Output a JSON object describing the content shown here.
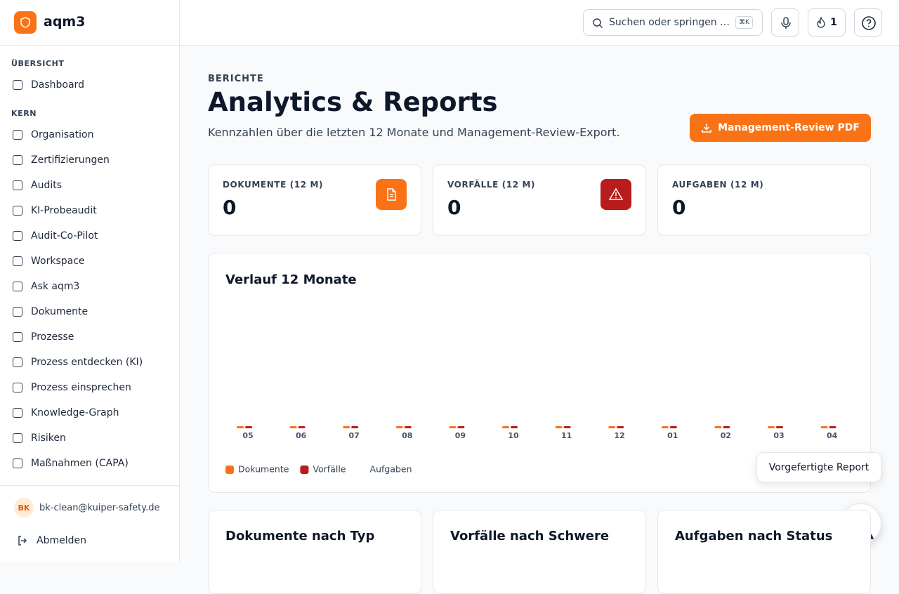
{
  "sidebar": {
    "brand": "aqm3",
    "sections": [
      {
        "title": "ÜBERSICHT",
        "items": [
          "Dashboard"
        ]
      },
      {
        "title": "KERN",
        "items": [
          "Organisation",
          "Zertifizierungen",
          "Audits",
          "KI-Probeaudit",
          "Audit-Co-Pilot",
          "Workspace",
          "Ask aqm3",
          "Dokumente",
          "Prozesse",
          "Prozess entdecken (KI)",
          "Prozess einsprechen",
          "Knowledge-Graph",
          "Risiken",
          "Maßnahmen (CAPA)"
        ]
      }
    ],
    "user": {
      "initials": "BK",
      "email": "bk-clean@kuiper-safety.de"
    },
    "logout": "Abmelden"
  },
  "topbar": {
    "search": "Suchen oder springen …",
    "shortcut": "⌘K",
    "streak": 1
  },
  "header": {
    "eyebrow": "BERICHTE",
    "title": "Analytics & Reports",
    "subtitle": "Kennzahlen über die letzten 12 Monate und Management-Review-Export.",
    "button": "Management-Review PDF"
  },
  "stats": [
    {
      "label": "DOKUMENTE (12 M)",
      "value": 0
    },
    {
      "label": "VORFÄLLE (12 M)",
      "value": 0
    },
    {
      "label": "AUFGABEN (12 M)",
      "value": 0
    }
  ],
  "chart_data": {
    "type": "bar",
    "title": "Verlauf 12 Monate",
    "categories": [
      "05",
      "06",
      "07",
      "08",
      "09",
      "10",
      "11",
      "12",
      "01",
      "02",
      "03",
      "04"
    ],
    "series": [
      {
        "name": "Dokumente",
        "color": "#f97316",
        "values": [
          0,
          0,
          0,
          0,
          0,
          0,
          0,
          0,
          0,
          0,
          0,
          0
        ]
      },
      {
        "name": "Vorfälle",
        "color": "#b91c1c",
        "values": [
          0,
          0,
          0,
          0,
          0,
          0,
          0,
          0,
          0,
          0,
          0,
          0
        ]
      },
      {
        "name": "Aufgaben",
        "color": "#ffffff",
        "values": [
          0,
          0,
          0,
          0,
          0,
          0,
          0,
          0,
          0,
          0,
          0,
          0
        ]
      }
    ]
  },
  "panels": [
    "Dokumente nach Typ",
    "Vorfälle nach Schwere",
    "Aufgaben nach Status"
  ],
  "assistant": {
    "tooltip": "Vorgefertigte Report"
  }
}
